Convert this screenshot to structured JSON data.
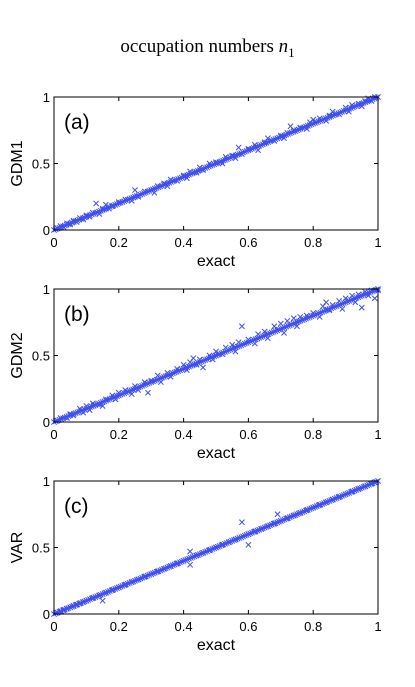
{
  "figure": {
    "title_text": "occupation numbers ",
    "title_math": "n",
    "title_sub": "1"
  },
  "chart_data": [
    {
      "type": "scatter",
      "panel_label": "(a)",
      "ylabel": "GDM1",
      "xlabel": "exact",
      "xlim": [
        0,
        1
      ],
      "ylim": [
        0,
        1
      ],
      "xticks": [
        "0",
        "0.2",
        "0.4",
        "0.6",
        "0.8",
        "1"
      ],
      "yticks": [
        "0",
        "0.5",
        "1"
      ],
      "marker": "x",
      "color": "#3f4fef",
      "grid": false,
      "points": [
        [
          0.01,
          0.015
        ],
        [
          0.02,
          0.03
        ],
        [
          0.03,
          0.02
        ],
        [
          0.04,
          0.05
        ],
        [
          0.05,
          0.04
        ],
        [
          0.06,
          0.07
        ],
        [
          0.07,
          0.06
        ],
        [
          0.08,
          0.09
        ],
        [
          0.09,
          0.08
        ],
        [
          0.1,
          0.11
        ],
        [
          0.11,
          0.1
        ],
        [
          0.12,
          0.13
        ],
        [
          0.13,
          0.2
        ],
        [
          0.14,
          0.12
        ],
        [
          0.15,
          0.16
        ],
        [
          0.16,
          0.19
        ],
        [
          0.17,
          0.16
        ],
        [
          0.18,
          0.18
        ],
        [
          0.2,
          0.21
        ],
        [
          0.22,
          0.23
        ],
        [
          0.24,
          0.22
        ],
        [
          0.25,
          0.3
        ],
        [
          0.26,
          0.25
        ],
        [
          0.28,
          0.29
        ],
        [
          0.3,
          0.3
        ],
        [
          0.31,
          0.28
        ],
        [
          0.32,
          0.33
        ],
        [
          0.34,
          0.35
        ],
        [
          0.35,
          0.33
        ],
        [
          0.36,
          0.38
        ],
        [
          0.38,
          0.37
        ],
        [
          0.4,
          0.41
        ],
        [
          0.41,
          0.39
        ],
        [
          0.42,
          0.44
        ],
        [
          0.44,
          0.43
        ],
        [
          0.45,
          0.47
        ],
        [
          0.46,
          0.45
        ],
        [
          0.48,
          0.5
        ],
        [
          0.5,
          0.51
        ],
        [
          0.52,
          0.5
        ],
        [
          0.53,
          0.55
        ],
        [
          0.55,
          0.56
        ],
        [
          0.56,
          0.54
        ],
        [
          0.57,
          0.62
        ],
        [
          0.58,
          0.57
        ],
        [
          0.6,
          0.61
        ],
        [
          0.62,
          0.64
        ],
        [
          0.63,
          0.6
        ],
        [
          0.65,
          0.66
        ],
        [
          0.66,
          0.69
        ],
        [
          0.68,
          0.67
        ],
        [
          0.7,
          0.71
        ],
        [
          0.71,
          0.69
        ],
        [
          0.72,
          0.73
        ],
        [
          0.73,
          0.78
        ],
        [
          0.74,
          0.75
        ],
        [
          0.76,
          0.77
        ],
        [
          0.78,
          0.76
        ],
        [
          0.79,
          0.81
        ],
        [
          0.8,
          0.83
        ],
        [
          0.82,
          0.84
        ],
        [
          0.84,
          0.82
        ],
        [
          0.85,
          0.86
        ],
        [
          0.86,
          0.89
        ],
        [
          0.88,
          0.87
        ],
        [
          0.9,
          0.92
        ],
        [
          0.91,
          0.89
        ],
        [
          0.92,
          0.94
        ],
        [
          0.94,
          0.95
        ],
        [
          0.95,
          0.93
        ],
        [
          0.96,
          0.97
        ],
        [
          0.97,
          0.99
        ],
        [
          0.98,
          0.97
        ],
        [
          0.99,
          1.0
        ]
      ]
    },
    {
      "type": "scatter",
      "panel_label": "(b)",
      "ylabel": "GDM2",
      "xlabel": "exact",
      "xlim": [
        0,
        1
      ],
      "ylim": [
        0,
        1
      ],
      "xticks": [
        "0",
        "0.2",
        "0.4",
        "0.6",
        "0.8",
        "1"
      ],
      "yticks": [
        "0",
        "0.5",
        "1"
      ],
      "marker": "x",
      "color": "#3f4fef",
      "grid": false,
      "points": [
        [
          0.01,
          0.01
        ],
        [
          0.02,
          0.03
        ],
        [
          0.04,
          0.03
        ],
        [
          0.05,
          0.06
        ],
        [
          0.06,
          0.05
        ],
        [
          0.08,
          0.1
        ],
        [
          0.09,
          0.07
        ],
        [
          0.1,
          0.12
        ],
        [
          0.11,
          0.09
        ],
        [
          0.12,
          0.14
        ],
        [
          0.14,
          0.13
        ],
        [
          0.15,
          0.12
        ],
        [
          0.16,
          0.17
        ],
        [
          0.18,
          0.2
        ],
        [
          0.19,
          0.17
        ],
        [
          0.2,
          0.22
        ],
        [
          0.22,
          0.24
        ],
        [
          0.24,
          0.21
        ],
        [
          0.25,
          0.27
        ],
        [
          0.26,
          0.24
        ],
        [
          0.28,
          0.3
        ],
        [
          0.29,
          0.22
        ],
        [
          0.3,
          0.31
        ],
        [
          0.32,
          0.35
        ],
        [
          0.33,
          0.3
        ],
        [
          0.35,
          0.37
        ],
        [
          0.36,
          0.34
        ],
        [
          0.38,
          0.4
        ],
        [
          0.4,
          0.43
        ],
        [
          0.41,
          0.39
        ],
        [
          0.42,
          0.45
        ],
        [
          0.43,
          0.48
        ],
        [
          0.44,
          0.43
        ],
        [
          0.45,
          0.47
        ],
        [
          0.46,
          0.41
        ],
        [
          0.48,
          0.5
        ],
        [
          0.49,
          0.47
        ],
        [
          0.5,
          0.53
        ],
        [
          0.52,
          0.51
        ],
        [
          0.53,
          0.56
        ],
        [
          0.55,
          0.58
        ],
        [
          0.56,
          0.53
        ],
        [
          0.57,
          0.6
        ],
        [
          0.58,
          0.72
        ],
        [
          0.6,
          0.62
        ],
        [
          0.62,
          0.59
        ],
        [
          0.63,
          0.66
        ],
        [
          0.65,
          0.68
        ],
        [
          0.66,
          0.63
        ],
        [
          0.68,
          0.72
        ],
        [
          0.7,
          0.74
        ],
        [
          0.71,
          0.67
        ],
        [
          0.72,
          0.76
        ],
        [
          0.74,
          0.78
        ],
        [
          0.75,
          0.72
        ],
        [
          0.76,
          0.79
        ],
        [
          0.78,
          0.8
        ],
        [
          0.8,
          0.82
        ],
        [
          0.82,
          0.79
        ],
        [
          0.83,
          0.87
        ],
        [
          0.84,
          0.9
        ],
        [
          0.85,
          0.84
        ],
        [
          0.86,
          0.88
        ],
        [
          0.88,
          0.91
        ],
        [
          0.89,
          0.85
        ],
        [
          0.9,
          0.93
        ],
        [
          0.92,
          0.95
        ],
        [
          0.93,
          0.9
        ],
        [
          0.94,
          0.96
        ],
        [
          0.95,
          0.86
        ],
        [
          0.96,
          0.98
        ],
        [
          0.97,
          0.95
        ],
        [
          0.98,
          0.99
        ],
        [
          0.99,
          0.93
        ],
        [
          1.0,
          0.99
        ]
      ]
    },
    {
      "type": "scatter",
      "panel_label": "(c)",
      "ylabel": "VAR",
      "xlabel": "exact",
      "xlim": [
        0,
        1
      ],
      "ylim": [
        0,
        1
      ],
      "xticks": [
        "0",
        "0.2",
        "0.4",
        "0.6",
        "0.8",
        "1"
      ],
      "yticks": [
        "0",
        "0.5",
        "1"
      ],
      "marker": "x",
      "color": "#3f4fef",
      "grid": false,
      "points": [
        [
          0.01,
          0.01
        ],
        [
          0.02,
          0.02
        ],
        [
          0.03,
          0.03
        ],
        [
          0.04,
          0.04
        ],
        [
          0.05,
          0.05
        ],
        [
          0.06,
          0.06
        ],
        [
          0.07,
          0.07
        ],
        [
          0.08,
          0.08
        ],
        [
          0.09,
          0.09
        ],
        [
          0.1,
          0.1
        ],
        [
          0.12,
          0.12
        ],
        [
          0.14,
          0.14
        ],
        [
          0.15,
          0.1
        ],
        [
          0.16,
          0.16
        ],
        [
          0.18,
          0.18
        ],
        [
          0.2,
          0.2
        ],
        [
          0.22,
          0.22
        ],
        [
          0.24,
          0.24
        ],
        [
          0.26,
          0.26
        ],
        [
          0.28,
          0.28
        ],
        [
          0.3,
          0.3
        ],
        [
          0.32,
          0.32
        ],
        [
          0.34,
          0.34
        ],
        [
          0.36,
          0.36
        ],
        [
          0.38,
          0.38
        ],
        [
          0.4,
          0.4
        ],
        [
          0.42,
          0.47
        ],
        [
          0.42,
          0.37
        ],
        [
          0.44,
          0.44
        ],
        [
          0.46,
          0.46
        ],
        [
          0.48,
          0.48
        ],
        [
          0.5,
          0.5
        ],
        [
          0.52,
          0.52
        ],
        [
          0.54,
          0.54
        ],
        [
          0.56,
          0.56
        ],
        [
          0.58,
          0.69
        ],
        [
          0.6,
          0.52
        ],
        [
          0.6,
          0.6
        ],
        [
          0.62,
          0.62
        ],
        [
          0.64,
          0.64
        ],
        [
          0.66,
          0.66
        ],
        [
          0.68,
          0.68
        ],
        [
          0.69,
          0.75
        ],
        [
          0.7,
          0.7
        ],
        [
          0.72,
          0.72
        ],
        [
          0.74,
          0.74
        ],
        [
          0.76,
          0.76
        ],
        [
          0.78,
          0.78
        ],
        [
          0.8,
          0.8
        ],
        [
          0.82,
          0.82
        ],
        [
          0.84,
          0.84
        ],
        [
          0.86,
          0.86
        ],
        [
          0.88,
          0.88
        ],
        [
          0.9,
          0.9
        ],
        [
          0.92,
          0.92
        ],
        [
          0.94,
          0.94
        ],
        [
          0.96,
          0.96
        ],
        [
          0.98,
          0.98
        ],
        [
          0.99,
          0.99
        ]
      ]
    }
  ]
}
